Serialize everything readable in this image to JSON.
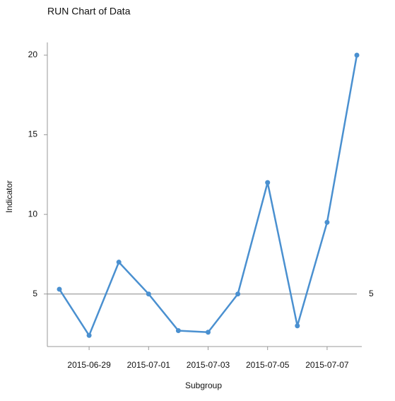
{
  "chart_data": {
    "type": "line",
    "title": "RUN Chart of Data",
    "x_label": "Subgroup",
    "y_label": "Indicator",
    "x": [
      "2015-06-28",
      "2015-06-29",
      "2015-06-30",
      "2015-07-01",
      "2015-07-02",
      "2015-07-03",
      "2015-07-04",
      "2015-07-05",
      "2015-07-06",
      "2015-07-07",
      "2015-07-08"
    ],
    "series": [
      {
        "color": "#4a90d0",
        "values": [
          5.3,
          2.4,
          7,
          5,
          2.7,
          2.6,
          5,
          12,
          3,
          9.5,
          20
        ]
      }
    ],
    "reference_line": {
      "value": 5,
      "color": "#888888"
    },
    "xticks": [
      "2015-06-29",
      "2015-07-01",
      "2015-07-03",
      "2015-07-05",
      "2015-07-07"
    ],
    "ylim": [
      1.7,
      20.8
    ],
    "yticks": [
      5,
      10,
      15,
      20
    ]
  }
}
